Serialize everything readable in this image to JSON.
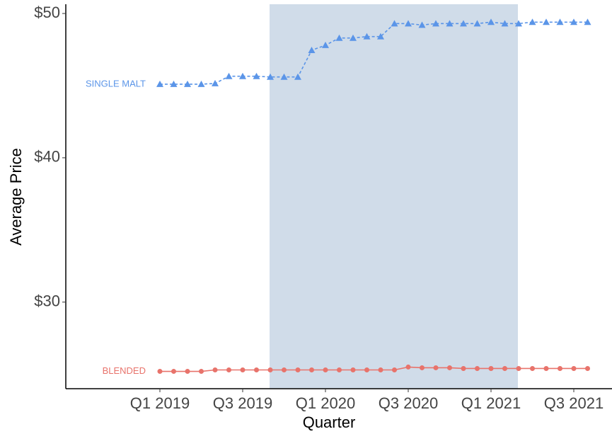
{
  "chart_data": {
    "type": "line",
    "x_label": "Quarter",
    "y_label": "Average Price",
    "categories": [
      "Q1 2019",
      null,
      null,
      null,
      null,
      null,
      "Q3 2019",
      null,
      null,
      null,
      null,
      null,
      "Q1 2020",
      null,
      null,
      null,
      null,
      null,
      "Q3 2020",
      null,
      null,
      null,
      null,
      null,
      "Q1 2021",
      null,
      null,
      null,
      null,
      null,
      "Q3 2021",
      null
    ],
    "highlight_range": [
      8,
      26
    ],
    "highlight_color": "#d0dce9",
    "ylim": [
      24,
      50.64
    ],
    "yticks": [
      {
        "value": 30,
        "label": "$30"
      },
      {
        "value": 40,
        "label": "$40"
      },
      {
        "value": 50,
        "label": "$50"
      }
    ],
    "series": [
      {
        "name": "SINGLE MALT",
        "color": "#5b95e8",
        "marker": "triangle",
        "dashed": true,
        "values": [
          45.1,
          45.1,
          45.1,
          45.1,
          45.15,
          45.65,
          45.65,
          45.65,
          45.6,
          45.6,
          45.6,
          47.45,
          47.8,
          48.3,
          48.3,
          48.4,
          48.4,
          49.3,
          49.3,
          49.2,
          49.3,
          49.3,
          49.3,
          49.3,
          49.4,
          49.3,
          49.3,
          49.4,
          49.4,
          49.4,
          49.4,
          49.4
        ]
      },
      {
        "name": "BLENDED",
        "color": "#e8736b",
        "marker": "circle",
        "dashed": false,
        "values": [
          25.2,
          25.2,
          25.2,
          25.2,
          25.3,
          25.3,
          25.3,
          25.3,
          25.3,
          25.3,
          25.3,
          25.3,
          25.3,
          25.3,
          25.3,
          25.3,
          25.3,
          25.3,
          25.5,
          25.45,
          25.45,
          25.45,
          25.4,
          25.4,
          25.4,
          25.4,
          25.4,
          25.4,
          25.4,
          25.4,
          25.4,
          25.4
        ]
      }
    ]
  }
}
